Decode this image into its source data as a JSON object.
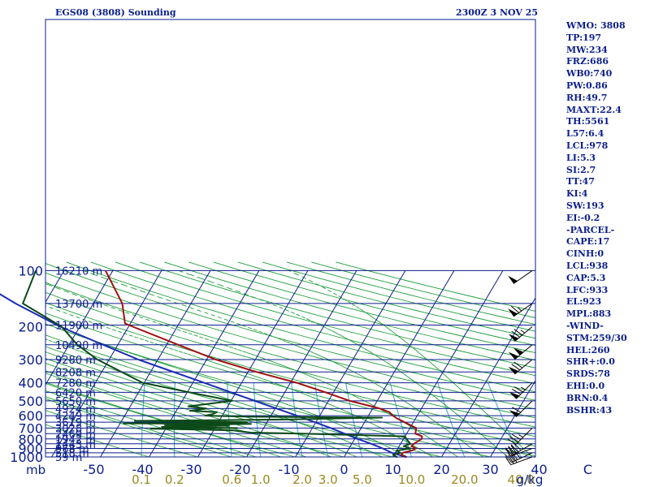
{
  "header": {
    "station_title": "EGS08 (3808) Sounding",
    "valid_time": "2300Z  3 NOV 25"
  },
  "indices": [
    "WMO: 3808",
    "TP:197",
    "MW:234",
    "FRZ:686",
    "WB0:740",
    "PW:0.86",
    "RH:49.7",
    "MAXT:22.4",
    "TH:5561",
    "L57:6.4",
    "LCL:978",
    "LI:5.3",
    "SI:2.7",
    "TT:47",
    "KI:4",
    "SW:193",
    "EI:-0.2",
    "-PARCEL-",
    "CAPE:17",
    "CINH:0",
    "LCL:938",
    "CAP:5.3",
    "LFC:933",
    "EL:923",
    "MPL:883",
    "-WIND-",
    "STM:259/30",
    "HEL:260",
    "SHR+:0.0",
    "SRDS:78",
    "EHI:0.0",
    "BRN:0.4",
    "BSHR:43"
  ],
  "colors": {
    "frame": "#0a1e8c",
    "isobar": "#0a1e8c",
    "isotherm": "#0a1e8c",
    "dry_adiabat": "#1f9e3a",
    "moist_adiabat": "#1f9e3a",
    "mixing_ratio": "#3ca0d8",
    "temperature": "#a01010",
    "dewpoint": "#0c4a18",
    "parcel": "#1a2cb4",
    "wind_barb": "#000000",
    "axis_label": "#0a1e8c",
    "mixing_label": "#9a8a20"
  },
  "chart_data": {
    "type": "skew-t",
    "pressure_axis": {
      "unit_label": "mb",
      "levels": [
        100,
        200,
        300,
        400,
        500,
        600,
        700,
        800,
        900,
        1000
      ],
      "labels": [
        "100",
        "200",
        "300",
        "400",
        "500",
        "600",
        "700",
        "800",
        "900",
        "1000"
      ]
    },
    "temperature_axis": {
      "ticks": [
        -50,
        -40,
        -30,
        -20,
        -10,
        0,
        10,
        20,
        30,
        40,
        50
      ],
      "labels": [
        "-50",
        "-40",
        "-30",
        "-20",
        "-10",
        "0",
        "10",
        "20",
        "30",
        "40",
        "C"
      ]
    },
    "mixing_ratio_axis": {
      "unit_label": "g/kg",
      "values": [
        0.1,
        0.2,
        0.6,
        1.0,
        2.0,
        3.0,
        5.0,
        10.0,
        20.0,
        40.0
      ],
      "labels": [
        "0.1",
        "0.2",
        "0.6",
        "1.0",
        "2.0",
        "3.0",
        "5.0",
        "10.0",
        "20.0",
        "40.0"
      ]
    },
    "heights": [
      {
        "p": 100,
        "label": "16210 m"
      },
      {
        "p": 150,
        "label": "13700 m"
      },
      {
        "p": 196,
        "label": "11900 m"
      },
      {
        "p": 250,
        "label": "10490 m"
      },
      {
        "p": 300,
        "label": "9280 m"
      },
      {
        "p": 350,
        "label": "8208 m"
      },
      {
        "p": 400,
        "label": "7280 m"
      },
      {
        "p": 450,
        "label": "6420 m"
      },
      {
        "p": 500,
        "label": "5650 m"
      },
      {
        "p": 550,
        "label": "4924 m"
      },
      {
        "p": 600,
        "label": "4249 m"
      },
      {
        "p": 650,
        "label": "3619 m"
      },
      {
        "p": 700,
        "label": "3028 m"
      },
      {
        "p": 750,
        "label": "2469 m"
      },
      {
        "p": 800,
        "label": "1942 m"
      },
      {
        "p": 850,
        "label": "1443 m"
      },
      {
        "p": 900,
        "label": "968 m"
      },
      {
        "p": 950,
        "label": "518 m"
      },
      {
        "p": 1000,
        "label": "59 m"
      }
    ],
    "series": [
      {
        "kind": "temperature",
        "points": [
          [
            1005,
            12.5
          ],
          [
            1000,
            12.6
          ],
          [
            975,
            11.5
          ],
          [
            950,
            11.5
          ],
          [
            925,
            13.1
          ],
          [
            900,
            13.7
          ],
          [
            875,
            12.5
          ],
          [
            850,
            12.7
          ],
          [
            800,
            13.7
          ],
          [
            775,
            13.5
          ],
          [
            750,
            11.8
          ],
          [
            700,
            11.3
          ],
          [
            650,
            8.2
          ],
          [
            620,
            6.1
          ],
          [
            600,
            5.0
          ],
          [
            575,
            3.9
          ],
          [
            550,
            1.5
          ],
          [
            500,
            -5.6
          ],
          [
            450,
            -11.6
          ],
          [
            400,
            -18.7
          ],
          [
            350,
            -28.2
          ],
          [
            300,
            -38.1
          ],
          [
            250,
            -47.6
          ],
          [
            200,
            -59.1
          ],
          [
            192,
            -61.1
          ],
          [
            150,
            -64.1
          ],
          [
            100,
            -71.5
          ]
        ]
      },
      {
        "kind": "dewpoint",
        "points": [
          [
            1005,
            11.0
          ],
          [
            1000,
            10.8
          ],
          [
            975,
            9.8
          ],
          [
            950,
            11.0
          ],
          [
            925,
            10.0
          ],
          [
            900,
            12.6
          ],
          [
            875,
            10.9
          ],
          [
            850,
            12.0
          ],
          [
            800,
            10.6
          ],
          [
            775,
            10.0
          ],
          [
            750,
            -11.2
          ],
          [
            740,
            -22.1
          ],
          [
            720,
            -26.0
          ],
          [
            705,
            -43.1
          ],
          [
            700,
            -25.4
          ],
          [
            690,
            -41.0
          ],
          [
            680,
            -27.4
          ],
          [
            675,
            -40.6
          ],
          [
            665,
            -23.1
          ],
          [
            660,
            -49.3
          ],
          [
            650,
            -24.1
          ],
          [
            640,
            -47.3
          ],
          [
            630,
            -17.0
          ],
          [
            615,
            3.0
          ],
          [
            608,
            -24.3
          ],
          [
            600,
            -33.5
          ],
          [
            590,
            -32.2
          ],
          [
            575,
            -31.5
          ],
          [
            565,
            -37.2
          ],
          [
            550,
            -34.1
          ],
          [
            535,
            -38.1
          ],
          [
            500,
            -29.8
          ],
          [
            400,
            -50.3
          ],
          [
            300,
            -62.4
          ],
          [
            250,
            -68.3
          ],
          [
            200,
            -73.7
          ],
          [
            150,
            -84.5
          ],
          [
            100,
            -85.8
          ]
        ]
      },
      {
        "kind": "parcel",
        "points": [
          [
            1000,
            12.8
          ],
          [
            950,
            9.3
          ],
          [
            900,
            6.9
          ],
          [
            850,
            4.0
          ],
          [
            800,
            0.6
          ],
          [
            700,
            -6.2
          ],
          [
            600,
            -14.7
          ],
          [
            500,
            -25.1
          ],
          [
            400,
            -37.7
          ],
          [
            300,
            -54.0
          ],
          [
            200,
            -74.0
          ],
          [
            150,
            -86.0
          ],
          [
            118,
            -95.0
          ]
        ]
      }
    ],
    "wind_barbs": [
      {
        "p": 1000,
        "dir": 250,
        "kt": 30
      },
      {
        "p": 950,
        "dir": 245,
        "kt": 35
      },
      {
        "p": 900,
        "dir": 250,
        "kt": 30
      },
      {
        "p": 850,
        "dir": 240,
        "kt": 40
      },
      {
        "p": 700,
        "dir": 225,
        "kt": 35
      },
      {
        "p": 500,
        "dir": 225,
        "kt": 60
      },
      {
        "p": 400,
        "dir": 225,
        "kt": 75
      },
      {
        "p": 300,
        "dir": 230,
        "kt": 70
      },
      {
        "p": 250,
        "dir": 230,
        "kt": 100
      },
      {
        "p": 200,
        "dir": 230,
        "kt": 75
      },
      {
        "p": 150,
        "dir": 235,
        "kt": 65
      },
      {
        "p": 100,
        "dir": 235,
        "kt": 50
      }
    ]
  }
}
